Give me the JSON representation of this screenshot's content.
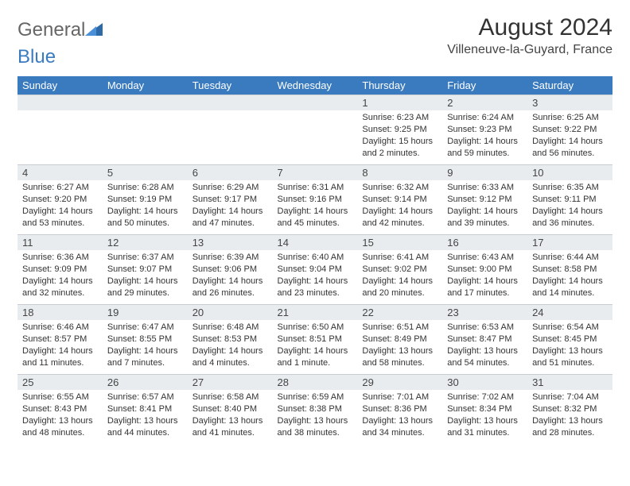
{
  "logo": {
    "part1": "General",
    "part2": "Blue"
  },
  "header": {
    "month_title": "August 2024",
    "location": "Villeneuve-la-Guyard, France"
  },
  "colors": {
    "header_bg": "#3a7bbf",
    "header_fg": "#ffffff",
    "daynum_bg": "#e9ecef",
    "daynum_border": "#c9cdd1",
    "text": "#333333",
    "logo_gray": "#666666",
    "logo_blue": "#3a7bbf"
  },
  "weekdays": [
    "Sunday",
    "Monday",
    "Tuesday",
    "Wednesday",
    "Thursday",
    "Friday",
    "Saturday"
  ],
  "lead_blanks": 4,
  "days": [
    {
      "n": 1,
      "sr": "6:23 AM",
      "ss": "9:25 PM",
      "dl": "15 hours and 2 minutes."
    },
    {
      "n": 2,
      "sr": "6:24 AM",
      "ss": "9:23 PM",
      "dl": "14 hours and 59 minutes."
    },
    {
      "n": 3,
      "sr": "6:25 AM",
      "ss": "9:22 PM",
      "dl": "14 hours and 56 minutes."
    },
    {
      "n": 4,
      "sr": "6:27 AM",
      "ss": "9:20 PM",
      "dl": "14 hours and 53 minutes."
    },
    {
      "n": 5,
      "sr": "6:28 AM",
      "ss": "9:19 PM",
      "dl": "14 hours and 50 minutes."
    },
    {
      "n": 6,
      "sr": "6:29 AM",
      "ss": "9:17 PM",
      "dl": "14 hours and 47 minutes."
    },
    {
      "n": 7,
      "sr": "6:31 AM",
      "ss": "9:16 PM",
      "dl": "14 hours and 45 minutes."
    },
    {
      "n": 8,
      "sr": "6:32 AM",
      "ss": "9:14 PM",
      "dl": "14 hours and 42 minutes."
    },
    {
      "n": 9,
      "sr": "6:33 AM",
      "ss": "9:12 PM",
      "dl": "14 hours and 39 minutes."
    },
    {
      "n": 10,
      "sr": "6:35 AM",
      "ss": "9:11 PM",
      "dl": "14 hours and 36 minutes."
    },
    {
      "n": 11,
      "sr": "6:36 AM",
      "ss": "9:09 PM",
      "dl": "14 hours and 32 minutes."
    },
    {
      "n": 12,
      "sr": "6:37 AM",
      "ss": "9:07 PM",
      "dl": "14 hours and 29 minutes."
    },
    {
      "n": 13,
      "sr": "6:39 AM",
      "ss": "9:06 PM",
      "dl": "14 hours and 26 minutes."
    },
    {
      "n": 14,
      "sr": "6:40 AM",
      "ss": "9:04 PM",
      "dl": "14 hours and 23 minutes."
    },
    {
      "n": 15,
      "sr": "6:41 AM",
      "ss": "9:02 PM",
      "dl": "14 hours and 20 minutes."
    },
    {
      "n": 16,
      "sr": "6:43 AM",
      "ss": "9:00 PM",
      "dl": "14 hours and 17 minutes."
    },
    {
      "n": 17,
      "sr": "6:44 AM",
      "ss": "8:58 PM",
      "dl": "14 hours and 14 minutes."
    },
    {
      "n": 18,
      "sr": "6:46 AM",
      "ss": "8:57 PM",
      "dl": "14 hours and 11 minutes."
    },
    {
      "n": 19,
      "sr": "6:47 AM",
      "ss": "8:55 PM",
      "dl": "14 hours and 7 minutes."
    },
    {
      "n": 20,
      "sr": "6:48 AM",
      "ss": "8:53 PM",
      "dl": "14 hours and 4 minutes."
    },
    {
      "n": 21,
      "sr": "6:50 AM",
      "ss": "8:51 PM",
      "dl": "14 hours and 1 minute."
    },
    {
      "n": 22,
      "sr": "6:51 AM",
      "ss": "8:49 PM",
      "dl": "13 hours and 58 minutes."
    },
    {
      "n": 23,
      "sr": "6:53 AM",
      "ss": "8:47 PM",
      "dl": "13 hours and 54 minutes."
    },
    {
      "n": 24,
      "sr": "6:54 AM",
      "ss": "8:45 PM",
      "dl": "13 hours and 51 minutes."
    },
    {
      "n": 25,
      "sr": "6:55 AM",
      "ss": "8:43 PM",
      "dl": "13 hours and 48 minutes."
    },
    {
      "n": 26,
      "sr": "6:57 AM",
      "ss": "8:41 PM",
      "dl": "13 hours and 44 minutes."
    },
    {
      "n": 27,
      "sr": "6:58 AM",
      "ss": "8:40 PM",
      "dl": "13 hours and 41 minutes."
    },
    {
      "n": 28,
      "sr": "6:59 AM",
      "ss": "8:38 PM",
      "dl": "13 hours and 38 minutes."
    },
    {
      "n": 29,
      "sr": "7:01 AM",
      "ss": "8:36 PM",
      "dl": "13 hours and 34 minutes."
    },
    {
      "n": 30,
      "sr": "7:02 AM",
      "ss": "8:34 PM",
      "dl": "13 hours and 31 minutes."
    },
    {
      "n": 31,
      "sr": "7:04 AM",
      "ss": "8:32 PM",
      "dl": "13 hours and 28 minutes."
    }
  ],
  "labels": {
    "sunrise_prefix": "Sunrise: ",
    "sunset_prefix": "Sunset: ",
    "daylight_prefix": "Daylight: "
  }
}
